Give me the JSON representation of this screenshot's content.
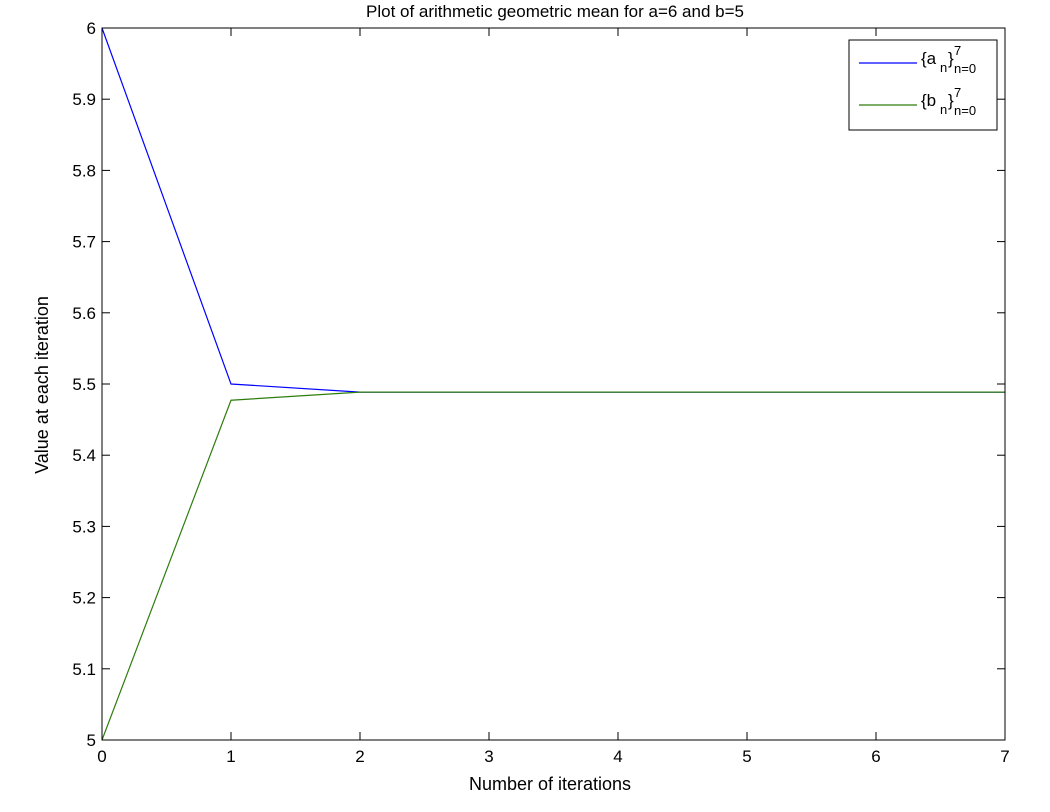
{
  "chart_data": {
    "type": "line",
    "title": "Plot of arithmetic geometric mean for a=6 and b=5",
    "xlabel": "Number of iterations",
    "ylabel": "Value at each iteration",
    "xlim": [
      0,
      7
    ],
    "ylim": [
      5,
      6
    ],
    "xticks": [
      "0",
      "1",
      "2",
      "3",
      "4",
      "5",
      "6",
      "7"
    ],
    "yticks": [
      "5",
      "5.1",
      "5.2",
      "5.3",
      "5.4",
      "5.5",
      "5.6",
      "5.7",
      "5.8",
      "5.9",
      "6"
    ],
    "grid": false,
    "legend_position": "top-right",
    "x": [
      0,
      1,
      2,
      3,
      4,
      5,
      6,
      7
    ],
    "series": [
      {
        "legend": {
          "open": "{a",
          "sub": "n",
          "close": "}",
          "sup": "7",
          "range": "n=0"
        },
        "color": "#0000ff",
        "values": [
          6,
          5.5,
          5.4886,
          5.4886,
          5.4886,
          5.4886,
          5.4886,
          5.4886
        ]
      },
      {
        "legend": {
          "open": "{b",
          "sub": "n",
          "close": "}",
          "sup": "7",
          "range": "n=0"
        },
        "color": "#2e7d0e",
        "values": [
          5,
          5.4772,
          5.4886,
          5.4886,
          5.4886,
          5.4886,
          5.4886,
          5.4886
        ]
      }
    ]
  }
}
